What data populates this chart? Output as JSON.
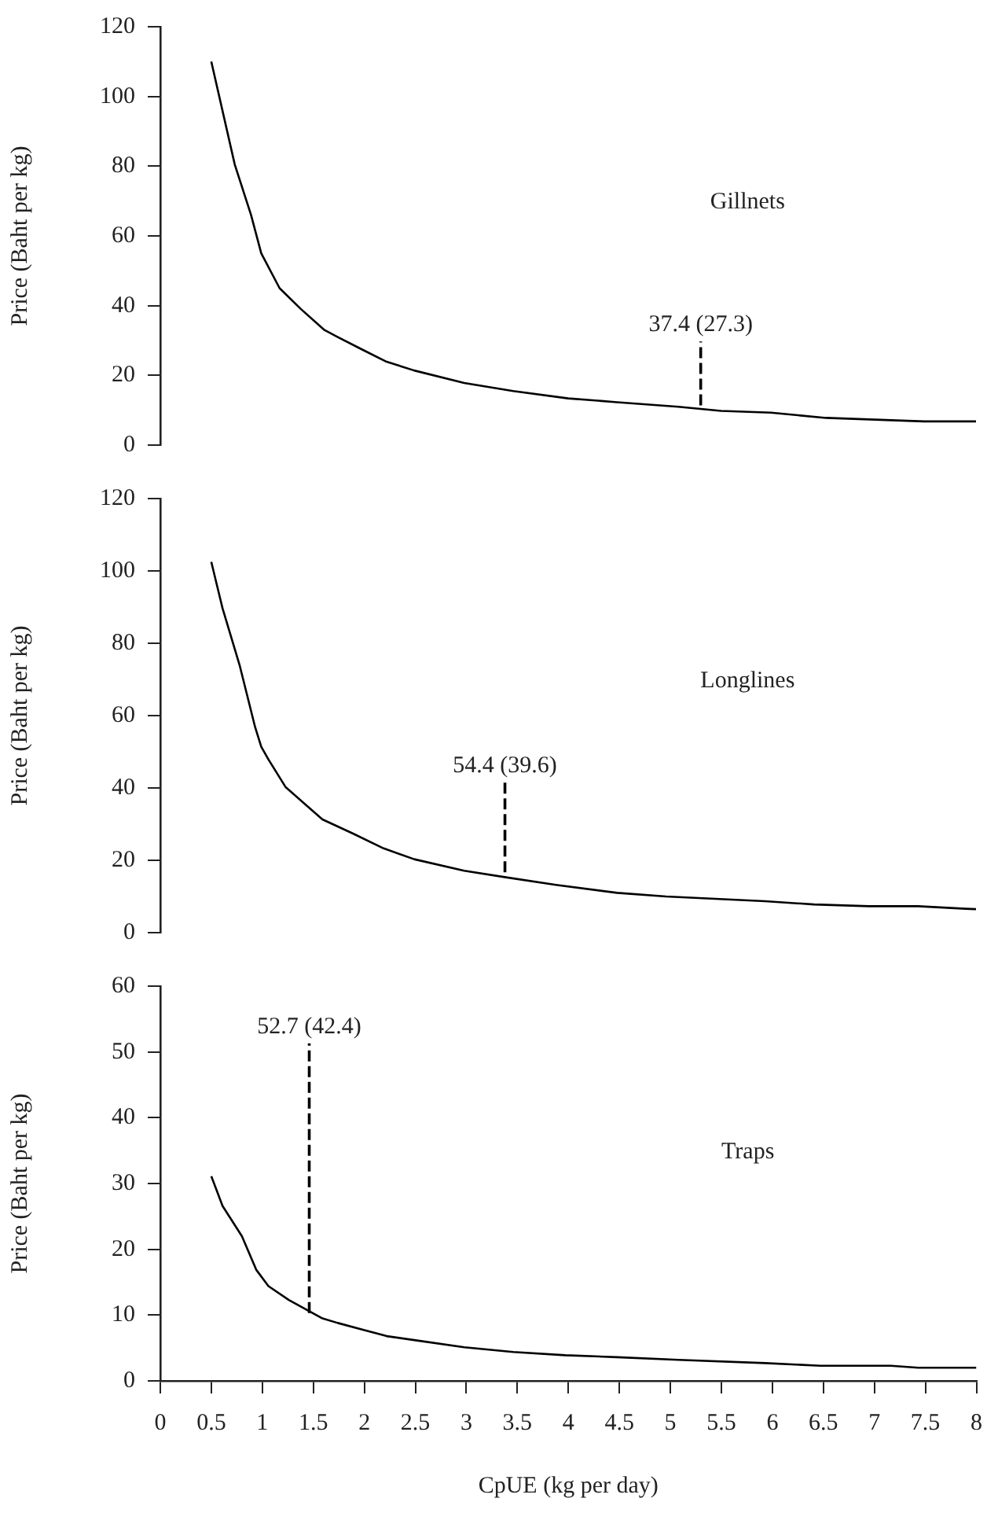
{
  "chart_data": [
    {
      "type": "line",
      "ylabel": "Price (Baht per kg)",
      "xlim": [
        0,
        8
      ],
      "xticks": [
        0,
        0.5,
        1,
        1.5,
        2,
        2.5,
        3,
        3.5,
        4,
        4.5,
        5,
        5.5,
        6,
        6.5,
        7,
        7.5,
        8
      ],
      "ylim": [
        0,
        120
      ],
      "yticks": [
        0,
        20,
        40,
        60,
        80,
        100,
        120
      ],
      "tick_labels": "y",
      "grid": false,
      "legend": false,
      "marker": "none",
      "annotations": [
        "Gillnets",
        {
          "text": "37.4 (27.3)",
          "x": 5.3,
          "y": 29.7
        }
      ],
      "series": [
        {
          "color": "#000000",
          "x": [
            0.5,
            0.73,
            0.89,
            0.99,
            1.17,
            1.38,
            1.61,
            1.74,
            1.98,
            2.22,
            2.49,
            2.98,
            3.46,
            4.0,
            4.48,
            5.08,
            5.5,
            5.99,
            6.53,
            7.01,
            7.49,
            7.9,
            8
          ],
          "values": [
            110,
            80.5,
            66,
            55,
            45,
            39,
            33,
            31,
            27.4,
            23.9,
            21.4,
            17.8,
            15.5,
            13.4,
            12.3,
            11,
            9.8,
            9.3,
            7.8,
            7.3,
            6.8,
            6.8,
            6.8
          ]
        },
        {
          "color": "#000000",
          "line_style": "dashed",
          "x": [
            5.3,
            5.3
          ],
          "values": [
            11.4,
            29.7
          ]
        }
      ]
    },
    {
      "type": "line",
      "ylabel": "Price (Baht per kg)",
      "xlim": [
        0,
        8
      ],
      "xticks": [
        0,
        0.5,
        1,
        1.5,
        2,
        2.5,
        3,
        3.5,
        4,
        4.5,
        5,
        5.5,
        6,
        6.5,
        7,
        7.5,
        8
      ],
      "ylim": [
        0,
        120
      ],
      "yticks": [
        0,
        20,
        40,
        60,
        80,
        100,
        120
      ],
      "tick_labels": "y",
      "grid": false,
      "legend": false,
      "marker": "none",
      "annotations": [
        "Longlines",
        {
          "text": "54.4 (39.6)",
          "x": 3.38,
          "y": 41.6
        }
      ],
      "series": [
        {
          "color": "#000000",
          "x": [
            0.5,
            0.61,
            0.78,
            0.93,
            0.99,
            1.06,
            1.23,
            1.59,
            1.89,
            2.19,
            2.49,
            2.98,
            3.39,
            3.88,
            4.48,
            4.96,
            5.93,
            6.41,
            6.95,
            7.43,
            7.9,
            8
          ],
          "values": [
            102.5,
            89.7,
            73.7,
            56.8,
            51.4,
            47.9,
            40.2,
            31.3,
            27.4,
            23.3,
            20.3,
            17.1,
            15.3,
            13.2,
            11,
            10,
            8.7,
            7.8,
            7.3,
            7.3,
            6.6,
            6.5
          ]
        },
        {
          "color": "#000000",
          "line_style": "dashed",
          "x": [
            3.38,
            3.38
          ],
          "values": [
            16.7,
            41.6
          ]
        }
      ]
    },
    {
      "type": "line",
      "ylabel": "Price (Baht per kg)",
      "xlabel": "CpUE (kg per day)",
      "xlim": [
        0,
        8
      ],
      "xticks": [
        0,
        0.5,
        1,
        1.5,
        2,
        2.5,
        3,
        3.5,
        4,
        4.5,
        5,
        5.5,
        6,
        6.5,
        7,
        7.5,
        8
      ],
      "ylim": [
        0,
        60
      ],
      "yticks": [
        0,
        10,
        20,
        30,
        40,
        50,
        60
      ],
      "grid": false,
      "legend": false,
      "marker": "none",
      "annotations": [
        "Traps",
        {
          "text": "52.7 (42.4)",
          "x": 1.46,
          "y": 51.3
        }
      ],
      "series": [
        {
          "color": "#000000",
          "x": [
            0.5,
            0.61,
            0.8,
            0.94,
            1.06,
            1.26,
            1.46,
            1.59,
            1.74,
            1.98,
            2.22,
            2.49,
            2.98,
            3.46,
            3.97,
            4.48,
            5.08,
            5.93,
            6.47,
            7.16,
            7.43,
            7.9,
            8
          ],
          "values": [
            31.1,
            26.6,
            22,
            16.9,
            14.4,
            12.3,
            10.6,
            9.5,
            8.8,
            7.8,
            6.8,
            6.2,
            5.1,
            4.4,
            3.9,
            3.6,
            3.2,
            2.7,
            2.3,
            2.3,
            2.0,
            2.0,
            2.0
          ]
        },
        {
          "color": "#000000",
          "line_style": "dashed",
          "x": [
            1.46,
            1.46
          ],
          "values": [
            10.3,
            51.3
          ]
        }
      ]
    }
  ]
}
